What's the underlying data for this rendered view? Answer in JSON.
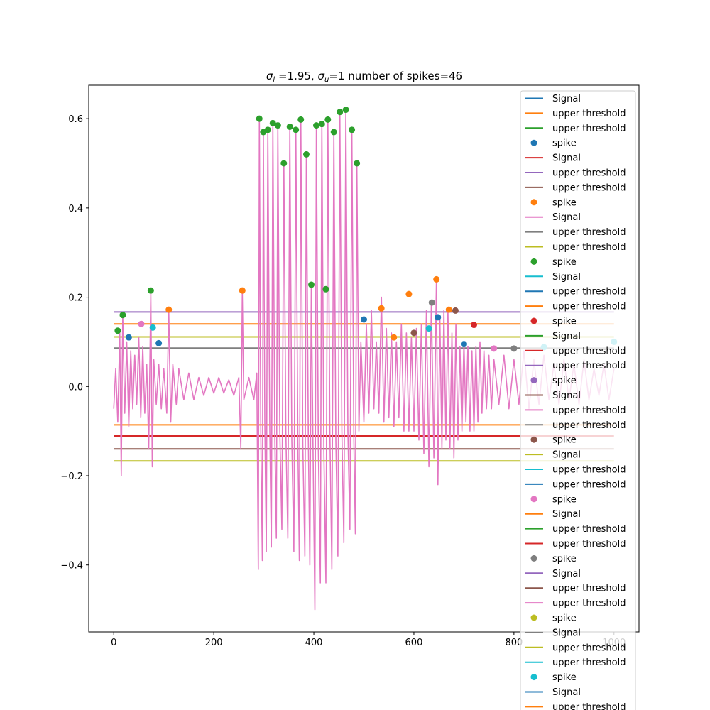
{
  "chart_data": {
    "type": "line",
    "title_parts": {
      "sym_l": "σ",
      "sub_l": "l",
      "mid": " =1.95, ",
      "sym_u": "σ",
      "sub_u": "u",
      "tail": "=1 number of spikes=46"
    },
    "xlim": [
      -50,
      1050
    ],
    "ylim": [
      -0.55,
      0.675
    ],
    "x_ticks": [
      0,
      200,
      400,
      600,
      800,
      1000
    ],
    "x_tick_labels": [
      "0",
      "200",
      "400",
      "600",
      "800",
      "1000"
    ],
    "y_ticks": [
      -0.4,
      -0.2,
      0.0,
      0.2,
      0.4,
      0.6
    ],
    "y_tick_labels": [
      "−0.4",
      "−0.2",
      "0.0",
      "0.2",
      "0.4",
      "0.6"
    ],
    "thresholds": [
      {
        "value": 0.167,
        "color": "#9467bd"
      },
      {
        "value": 0.14,
        "color": "#ff7f0e"
      },
      {
        "value": 0.111,
        "color": "#bcbd22"
      },
      {
        "value": 0.086,
        "color": "#7f7f7f"
      },
      {
        "value": -0.086,
        "color": "#ff7f0e"
      },
      {
        "value": -0.111,
        "color": "#d62728"
      },
      {
        "value": -0.14,
        "color": "#8c564b"
      },
      {
        "value": -0.167,
        "color": "#bcbd22"
      }
    ],
    "signal": {
      "color": "#e377c2",
      "points": [
        [
          0,
          -0.05
        ],
        [
          4,
          0.04
        ],
        [
          8,
          -0.08
        ],
        [
          12,
          0.12
        ],
        [
          15,
          -0.2
        ],
        [
          18,
          0.16
        ],
        [
          22,
          -0.06
        ],
        [
          26,
          0.1
        ],
        [
          30,
          -0.09
        ],
        [
          34,
          0.08
        ],
        [
          38,
          -0.05
        ],
        [
          42,
          0.07
        ],
        [
          46,
          -0.04
        ],
        [
          50,
          0.11
        ],
        [
          54,
          -0.07
        ],
        [
          58,
          0.09
        ],
        [
          62,
          -0.06
        ],
        [
          66,
          0.05
        ],
        [
          70,
          -0.14
        ],
        [
          74,
          0.21
        ],
        [
          77,
          -0.18
        ],
        [
          80,
          0.06
        ],
        [
          85,
          -0.04
        ],
        [
          90,
          0.05
        ],
        [
          95,
          -0.05
        ],
        [
          100,
          0.04
        ],
        [
          106,
          -0.06
        ],
        [
          110,
          0.17
        ],
        [
          114,
          -0.08
        ],
        [
          118,
          0.05
        ],
        [
          125,
          -0.04
        ],
        [
          130,
          0.04
        ],
        [
          140,
          -0.03
        ],
        [
          150,
          0.03
        ],
        [
          160,
          -0.03
        ],
        [
          170,
          0.02
        ],
        [
          180,
          -0.02
        ],
        [
          190,
          0.02
        ],
        [
          200,
          -0.015
        ],
        [
          210,
          0.02
        ],
        [
          220,
          -0.015
        ],
        [
          230,
          0.015
        ],
        [
          240,
          -0.02
        ],
        [
          250,
          0.02
        ],
        [
          254,
          -0.14
        ],
        [
          257,
          0.21
        ],
        [
          260,
          -0.03
        ],
        [
          270,
          0.02
        ],
        [
          280,
          -0.03
        ],
        [
          286,
          0.03
        ],
        [
          289,
          -0.41
        ],
        [
          291,
          0.6
        ],
        [
          294,
          -0.12
        ],
        [
          297,
          -0.39
        ],
        [
          299,
          0.57
        ],
        [
          302,
          -0.08
        ],
        [
          305,
          -0.37
        ],
        [
          308,
          0.57
        ],
        [
          312,
          -0.1
        ],
        [
          315,
          -0.36
        ],
        [
          318,
          0.59
        ],
        [
          322,
          -0.12
        ],
        [
          325,
          -0.34
        ],
        [
          328,
          0.58
        ],
        [
          332,
          -0.1
        ],
        [
          336,
          -0.32
        ],
        [
          340,
          0.5
        ],
        [
          344,
          -0.1
        ],
        [
          348,
          -0.34
        ],
        [
          352,
          0.58
        ],
        [
          356,
          -0.12
        ],
        [
          360,
          -0.37
        ],
        [
          364,
          0.57
        ],
        [
          368,
          -0.12
        ],
        [
          371,
          -0.39
        ],
        [
          374,
          0.6
        ],
        [
          378,
          -0.13
        ],
        [
          382,
          -0.38
        ],
        [
          385,
          0.52
        ],
        [
          389,
          -0.12
        ],
        [
          392,
          -0.4
        ],
        [
          395,
          0.23
        ],
        [
          398,
          -0.1
        ],
        [
          402,
          -0.5
        ],
        [
          405,
          0.58
        ],
        [
          409,
          -0.14
        ],
        [
          413,
          -0.44
        ],
        [
          416,
          0.59
        ],
        [
          420,
          -0.14
        ],
        [
          424,
          -0.44
        ],
        [
          428,
          0.6
        ],
        [
          432,
          -0.1
        ],
        [
          436,
          -0.41
        ],
        [
          440,
          0.57
        ],
        [
          444,
          -0.12
        ],
        [
          448,
          -0.38
        ],
        [
          452,
          0.61
        ],
        [
          456,
          -0.1
        ],
        [
          460,
          -0.35
        ],
        [
          464,
          0.62
        ],
        [
          468,
          -0.1
        ],
        [
          472,
          -0.32
        ],
        [
          476,
          0.57
        ],
        [
          480,
          -0.12
        ],
        [
          483,
          -0.33
        ],
        [
          486,
          0.5
        ],
        [
          490,
          -0.1
        ],
        [
          494,
          0.1
        ],
        [
          500,
          -0.08
        ],
        [
          505,
          0.14
        ],
        [
          510,
          -0.06
        ],
        [
          515,
          0.17
        ],
        [
          520,
          -0.05
        ],
        [
          525,
          0.1
        ],
        [
          530,
          -0.06
        ],
        [
          535,
          0.2
        ],
        [
          540,
          -0.08
        ],
        [
          545,
          0.13
        ],
        [
          550,
          -0.07
        ],
        [
          555,
          0.12
        ],
        [
          560,
          -0.09
        ],
        [
          565,
          0.1
        ],
        [
          570,
          -0.07
        ],
        [
          575,
          0.14
        ],
        [
          580,
          -0.1
        ],
        [
          585,
          0.12
        ],
        [
          590,
          -0.1
        ],
        [
          595,
          0.11
        ],
        [
          600,
          -0.1
        ],
        [
          605,
          0.13
        ],
        [
          610,
          -0.12
        ],
        [
          615,
          0.14
        ],
        [
          620,
          -0.15
        ],
        [
          625,
          0.17
        ],
        [
          630,
          -0.18
        ],
        [
          635,
          0.19
        ],
        [
          640,
          -0.16
        ],
        [
          645,
          0.24
        ],
        [
          648,
          -0.22
        ],
        [
          652,
          0.15
        ],
        [
          656,
          -0.14
        ],
        [
          660,
          0.17
        ],
        [
          664,
          -0.12
        ],
        [
          668,
          0.17
        ],
        [
          672,
          -0.14
        ],
        [
          676,
          0.12
        ],
        [
          680,
          -0.16
        ],
        [
          684,
          0.14
        ],
        [
          688,
          -0.12
        ],
        [
          692,
          0.09
        ],
        [
          696,
          -0.1
        ],
        [
          700,
          0.1
        ],
        [
          704,
          -0.08
        ],
        [
          708,
          0.09
        ],
        [
          712,
          -0.1
        ],
        [
          716,
          0.08
        ],
        [
          720,
          -0.1
        ],
        [
          724,
          0.09
        ],
        [
          728,
          -0.08
        ],
        [
          732,
          0.1
        ],
        [
          736,
          -0.06
        ],
        [
          740,
          0.08
        ],
        [
          745,
          -0.05
        ],
        [
          750,
          0.07
        ],
        [
          755,
          -0.05
        ],
        [
          760,
          0.06
        ],
        [
          770,
          -0.04
        ],
        [
          780,
          0.07
        ],
        [
          790,
          -0.05
        ],
        [
          800,
          0.06
        ],
        [
          810,
          -0.04
        ],
        [
          820,
          0.08
        ],
        [
          830,
          -0.05
        ],
        [
          840,
          0.06
        ],
        [
          850,
          -0.04
        ],
        [
          860,
          0.07
        ],
        [
          870,
          -0.03
        ],
        [
          880,
          0.05
        ],
        [
          890,
          -0.04
        ],
        [
          900,
          0.06
        ],
        [
          910,
          -0.03
        ],
        [
          920,
          0.05
        ],
        [
          930,
          -0.04
        ],
        [
          940,
          0.06
        ],
        [
          950,
          -0.03
        ],
        [
          960,
          0.04
        ],
        [
          970,
          -0.02
        ],
        [
          980,
          0.05
        ],
        [
          990,
          -0.03
        ],
        [
          1000,
          0.04
        ]
      ]
    },
    "spikes": [
      {
        "x": 8,
        "y": 0.125,
        "color": "#2ca02c"
      },
      {
        "x": 18,
        "y": 0.16,
        "color": "#2ca02c"
      },
      {
        "x": 74,
        "y": 0.215,
        "color": "#2ca02c"
      },
      {
        "x": 110,
        "y": 0.172,
        "color": "#ff7f0e"
      },
      {
        "x": 257,
        "y": 0.215,
        "color": "#ff7f0e"
      },
      {
        "x": 291,
        "y": 0.6,
        "color": "#2ca02c"
      },
      {
        "x": 299,
        "y": 0.57,
        "color": "#2ca02c"
      },
      {
        "x": 308,
        "y": 0.575,
        "color": "#2ca02c"
      },
      {
        "x": 318,
        "y": 0.59,
        "color": "#2ca02c"
      },
      {
        "x": 328,
        "y": 0.585,
        "color": "#2ca02c"
      },
      {
        "x": 340,
        "y": 0.5,
        "color": "#2ca02c"
      },
      {
        "x": 352,
        "y": 0.582,
        "color": "#2ca02c"
      },
      {
        "x": 364,
        "y": 0.575,
        "color": "#2ca02c"
      },
      {
        "x": 374,
        "y": 0.598,
        "color": "#2ca02c"
      },
      {
        "x": 385,
        "y": 0.52,
        "color": "#2ca02c"
      },
      {
        "x": 395,
        "y": 0.228,
        "color": "#2ca02c"
      },
      {
        "x": 405,
        "y": 0.585,
        "color": "#2ca02c"
      },
      {
        "x": 416,
        "y": 0.588,
        "color": "#2ca02c"
      },
      {
        "x": 428,
        "y": 0.598,
        "color": "#2ca02c"
      },
      {
        "x": 440,
        "y": 0.57,
        "color": "#2ca02c"
      },
      {
        "x": 452,
        "y": 0.615,
        "color": "#2ca02c"
      },
      {
        "x": 464,
        "y": 0.62,
        "color": "#2ca02c"
      },
      {
        "x": 476,
        "y": 0.575,
        "color": "#2ca02c"
      },
      {
        "x": 486,
        "y": 0.5,
        "color": "#2ca02c"
      },
      {
        "x": 424,
        "y": 0.218,
        "color": "#2ca02c"
      },
      {
        "x": 535,
        "y": 0.175,
        "color": "#ff7f0e"
      },
      {
        "x": 590,
        "y": 0.207,
        "color": "#ff7f0e"
      },
      {
        "x": 645,
        "y": 0.24,
        "color": "#ff7f0e"
      },
      {
        "x": 670,
        "y": 0.172,
        "color": "#ff7f0e"
      },
      {
        "x": 636,
        "y": 0.188,
        "color": "#7f7f7f"
      },
      {
        "x": 648,
        "y": 0.155,
        "color": "#1f77b4"
      },
      {
        "x": 683,
        "y": 0.17,
        "color": "#8c564b"
      },
      {
        "x": 30,
        "y": 0.11,
        "color": "#1f77b4"
      },
      {
        "x": 55,
        "y": 0.14,
        "color": "#e377c2"
      },
      {
        "x": 90,
        "y": 0.097,
        "color": "#1f77b4"
      },
      {
        "x": 78,
        "y": 0.132,
        "color": "#17becf"
      },
      {
        "x": 500,
        "y": 0.15,
        "color": "#1f77b4"
      },
      {
        "x": 560,
        "y": 0.11,
        "color": "#ff7f0e"
      },
      {
        "x": 600,
        "y": 0.12,
        "color": "#8c564b"
      },
      {
        "x": 630,
        "y": 0.13,
        "color": "#17becf"
      },
      {
        "x": 700,
        "y": 0.095,
        "color": "#1f77b4"
      },
      {
        "x": 720,
        "y": 0.138,
        "color": "#d62728"
      },
      {
        "x": 760,
        "y": 0.085,
        "color": "#e377c2"
      },
      {
        "x": 800,
        "y": 0.085,
        "color": "#7f7f7f"
      },
      {
        "x": 860,
        "y": 0.088,
        "color": "#17becf"
      },
      {
        "x": 1000,
        "y": 0.1,
        "color": "#17becf"
      }
    ],
    "legend": {
      "placement": "right",
      "entries": [
        {
          "label": "Signal",
          "kind": "line",
          "color": "#1f77b4"
        },
        {
          "label": "upper threshold",
          "kind": "line",
          "color": "#ff7f0e"
        },
        {
          "label": "upper threshold",
          "kind": "line",
          "color": "#2ca02c"
        },
        {
          "label": "spike",
          "kind": "dot",
          "color": "#1f77b4"
        },
        {
          "label": "Signal",
          "kind": "line",
          "color": "#d62728"
        },
        {
          "label": "upper threshold",
          "kind": "line",
          "color": "#9467bd"
        },
        {
          "label": "upper threshold",
          "kind": "line",
          "color": "#8c564b"
        },
        {
          "label": "spike",
          "kind": "dot",
          "color": "#ff7f0e"
        },
        {
          "label": "Signal",
          "kind": "line",
          "color": "#e377c2"
        },
        {
          "label": "upper threshold",
          "kind": "line",
          "color": "#7f7f7f"
        },
        {
          "label": "upper threshold",
          "kind": "line",
          "color": "#bcbd22"
        },
        {
          "label": "spike",
          "kind": "dot",
          "color": "#2ca02c"
        },
        {
          "label": "Signal",
          "kind": "line",
          "color": "#17becf"
        },
        {
          "label": "upper threshold",
          "kind": "line",
          "color": "#1f77b4"
        },
        {
          "label": "upper threshold",
          "kind": "line",
          "color": "#ff7f0e"
        },
        {
          "label": "spike",
          "kind": "dot",
          "color": "#d62728"
        },
        {
          "label": "Signal",
          "kind": "line",
          "color": "#2ca02c"
        },
        {
          "label": "upper threshold",
          "kind": "line",
          "color": "#d62728"
        },
        {
          "label": "upper threshold",
          "kind": "line",
          "color": "#9467bd"
        },
        {
          "label": "spike",
          "kind": "dot",
          "color": "#9467bd"
        },
        {
          "label": "Signal",
          "kind": "line",
          "color": "#8c564b"
        },
        {
          "label": "upper threshold",
          "kind": "line",
          "color": "#e377c2"
        },
        {
          "label": "upper threshold",
          "kind": "line",
          "color": "#7f7f7f"
        },
        {
          "label": "spike",
          "kind": "dot",
          "color": "#8c564b"
        },
        {
          "label": "Signal",
          "kind": "line",
          "color": "#bcbd22"
        },
        {
          "label": "upper threshold",
          "kind": "line",
          "color": "#17becf"
        },
        {
          "label": "upper threshold",
          "kind": "line",
          "color": "#1f77b4"
        },
        {
          "label": "spike",
          "kind": "dot",
          "color": "#e377c2"
        },
        {
          "label": "Signal",
          "kind": "line",
          "color": "#ff7f0e"
        },
        {
          "label": "upper threshold",
          "kind": "line",
          "color": "#2ca02c"
        },
        {
          "label": "upper threshold",
          "kind": "line",
          "color": "#d62728"
        },
        {
          "label": "spike",
          "kind": "dot",
          "color": "#7f7f7f"
        },
        {
          "label": "Signal",
          "kind": "line",
          "color": "#9467bd"
        },
        {
          "label": "upper threshold",
          "kind": "line",
          "color": "#8c564b"
        },
        {
          "label": "upper threshold",
          "kind": "line",
          "color": "#e377c2"
        },
        {
          "label": "spike",
          "kind": "dot",
          "color": "#bcbd22"
        },
        {
          "label": "Signal",
          "kind": "line",
          "color": "#7f7f7f"
        },
        {
          "label": "upper threshold",
          "kind": "line",
          "color": "#bcbd22"
        },
        {
          "label": "upper threshold",
          "kind": "line",
          "color": "#17becf"
        },
        {
          "label": "spike",
          "kind": "dot",
          "color": "#17becf"
        },
        {
          "label": "Signal",
          "kind": "line",
          "color": "#1f77b4"
        },
        {
          "label": "upper threshold",
          "kind": "line",
          "color": "#ff7f0e"
        }
      ]
    }
  }
}
